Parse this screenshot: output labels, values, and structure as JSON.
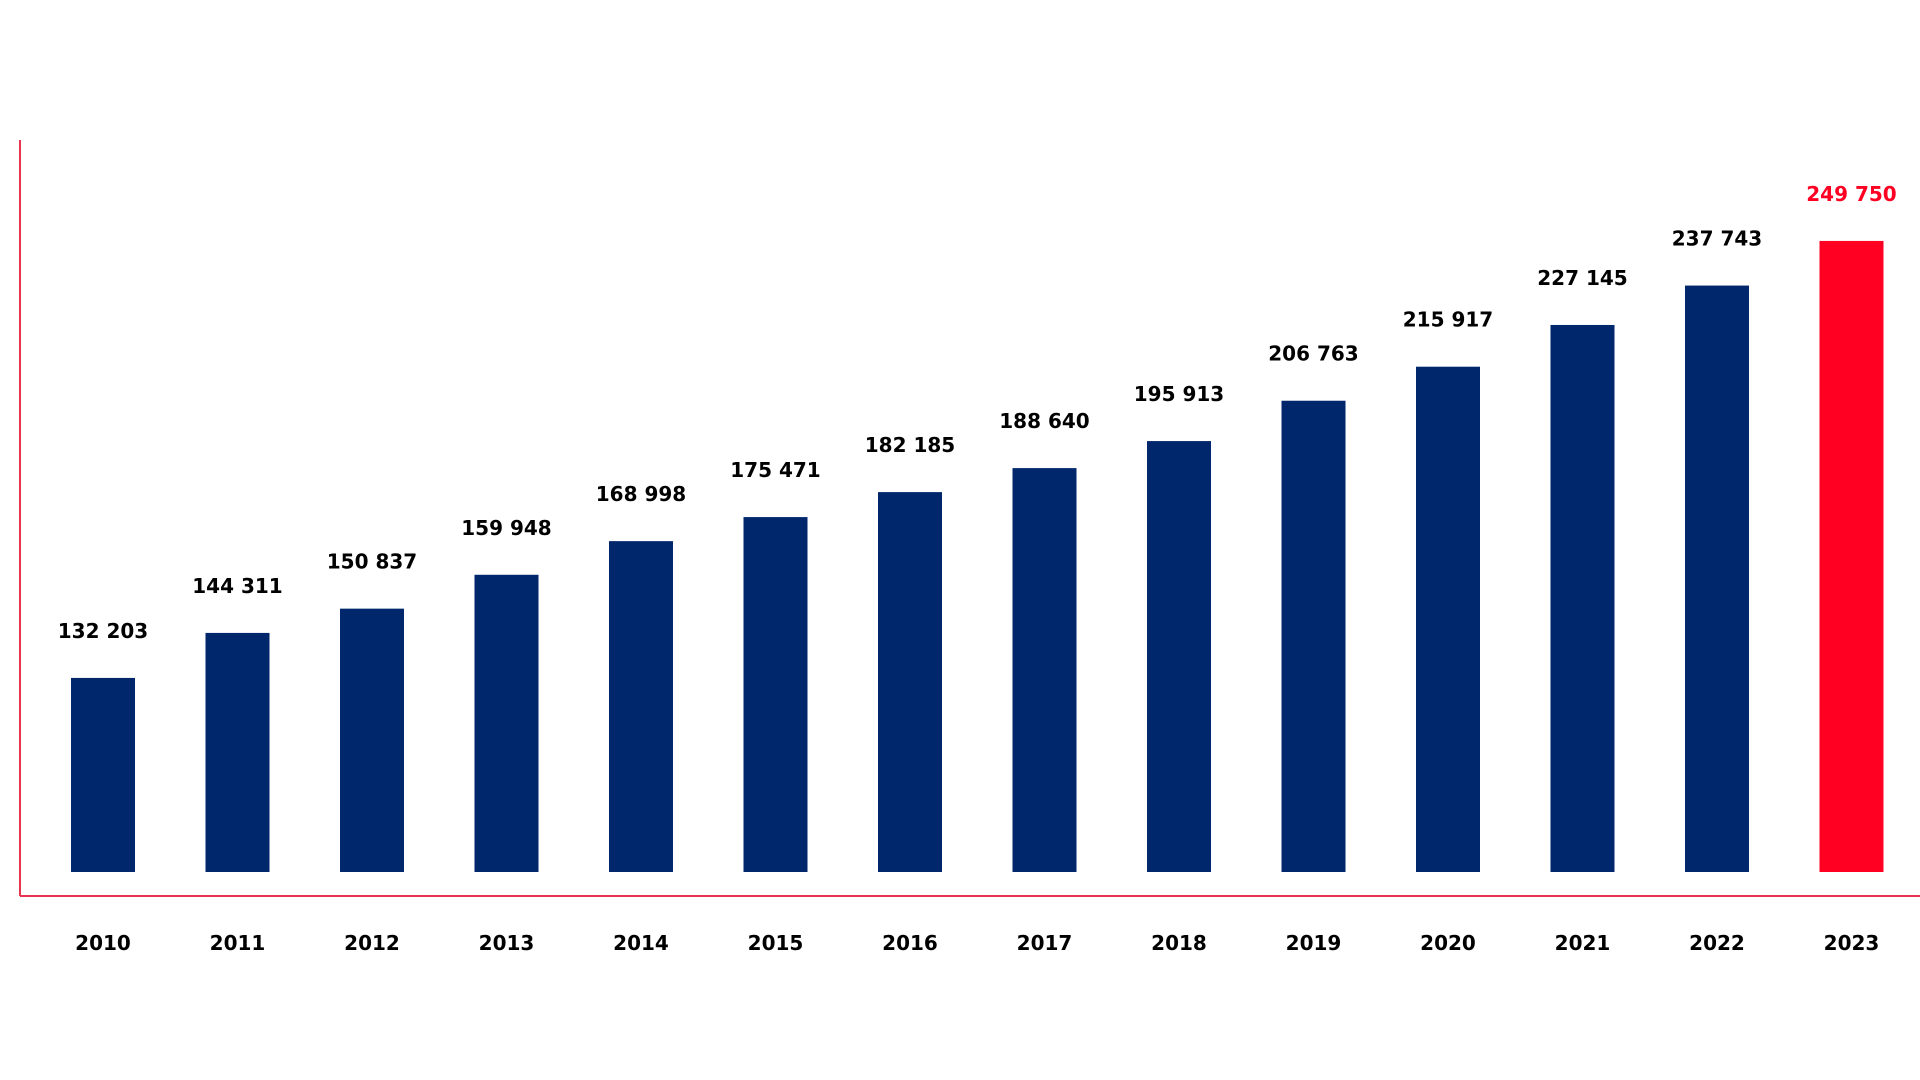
{
  "chart_data": {
    "type": "bar",
    "title": "",
    "xlabel": "",
    "ylabel": "",
    "categories": [
      "2010",
      "2011",
      "2012",
      "2013",
      "2014",
      "2015",
      "2016",
      "2017",
      "2018",
      "2019",
      "2020",
      "2021",
      "2022",
      "2023"
    ],
    "values": [
      132203,
      144311,
      150837,
      159948,
      168998,
      175471,
      182185,
      188640,
      195913,
      206763,
      215917,
      227145,
      237743,
      249750
    ],
    "data_labels": [
      "132 203",
      "144 311",
      "150 837",
      "159 948",
      "168 998",
      "175 471",
      "182 185",
      "188 640",
      "195 913",
      "206 763",
      "215 917",
      "227 145",
      "237 743",
      "249 750"
    ],
    "ylim": [
      80000,
      250000
    ],
    "grid": false,
    "legend": "none",
    "colors": {
      "bar": "#00266B",
      "highlight_bar": "#FF0022",
      "highlight_label": "#FF0022",
      "axis": "#E8344E",
      "label": "#000000"
    },
    "highlight_index": 13
  }
}
